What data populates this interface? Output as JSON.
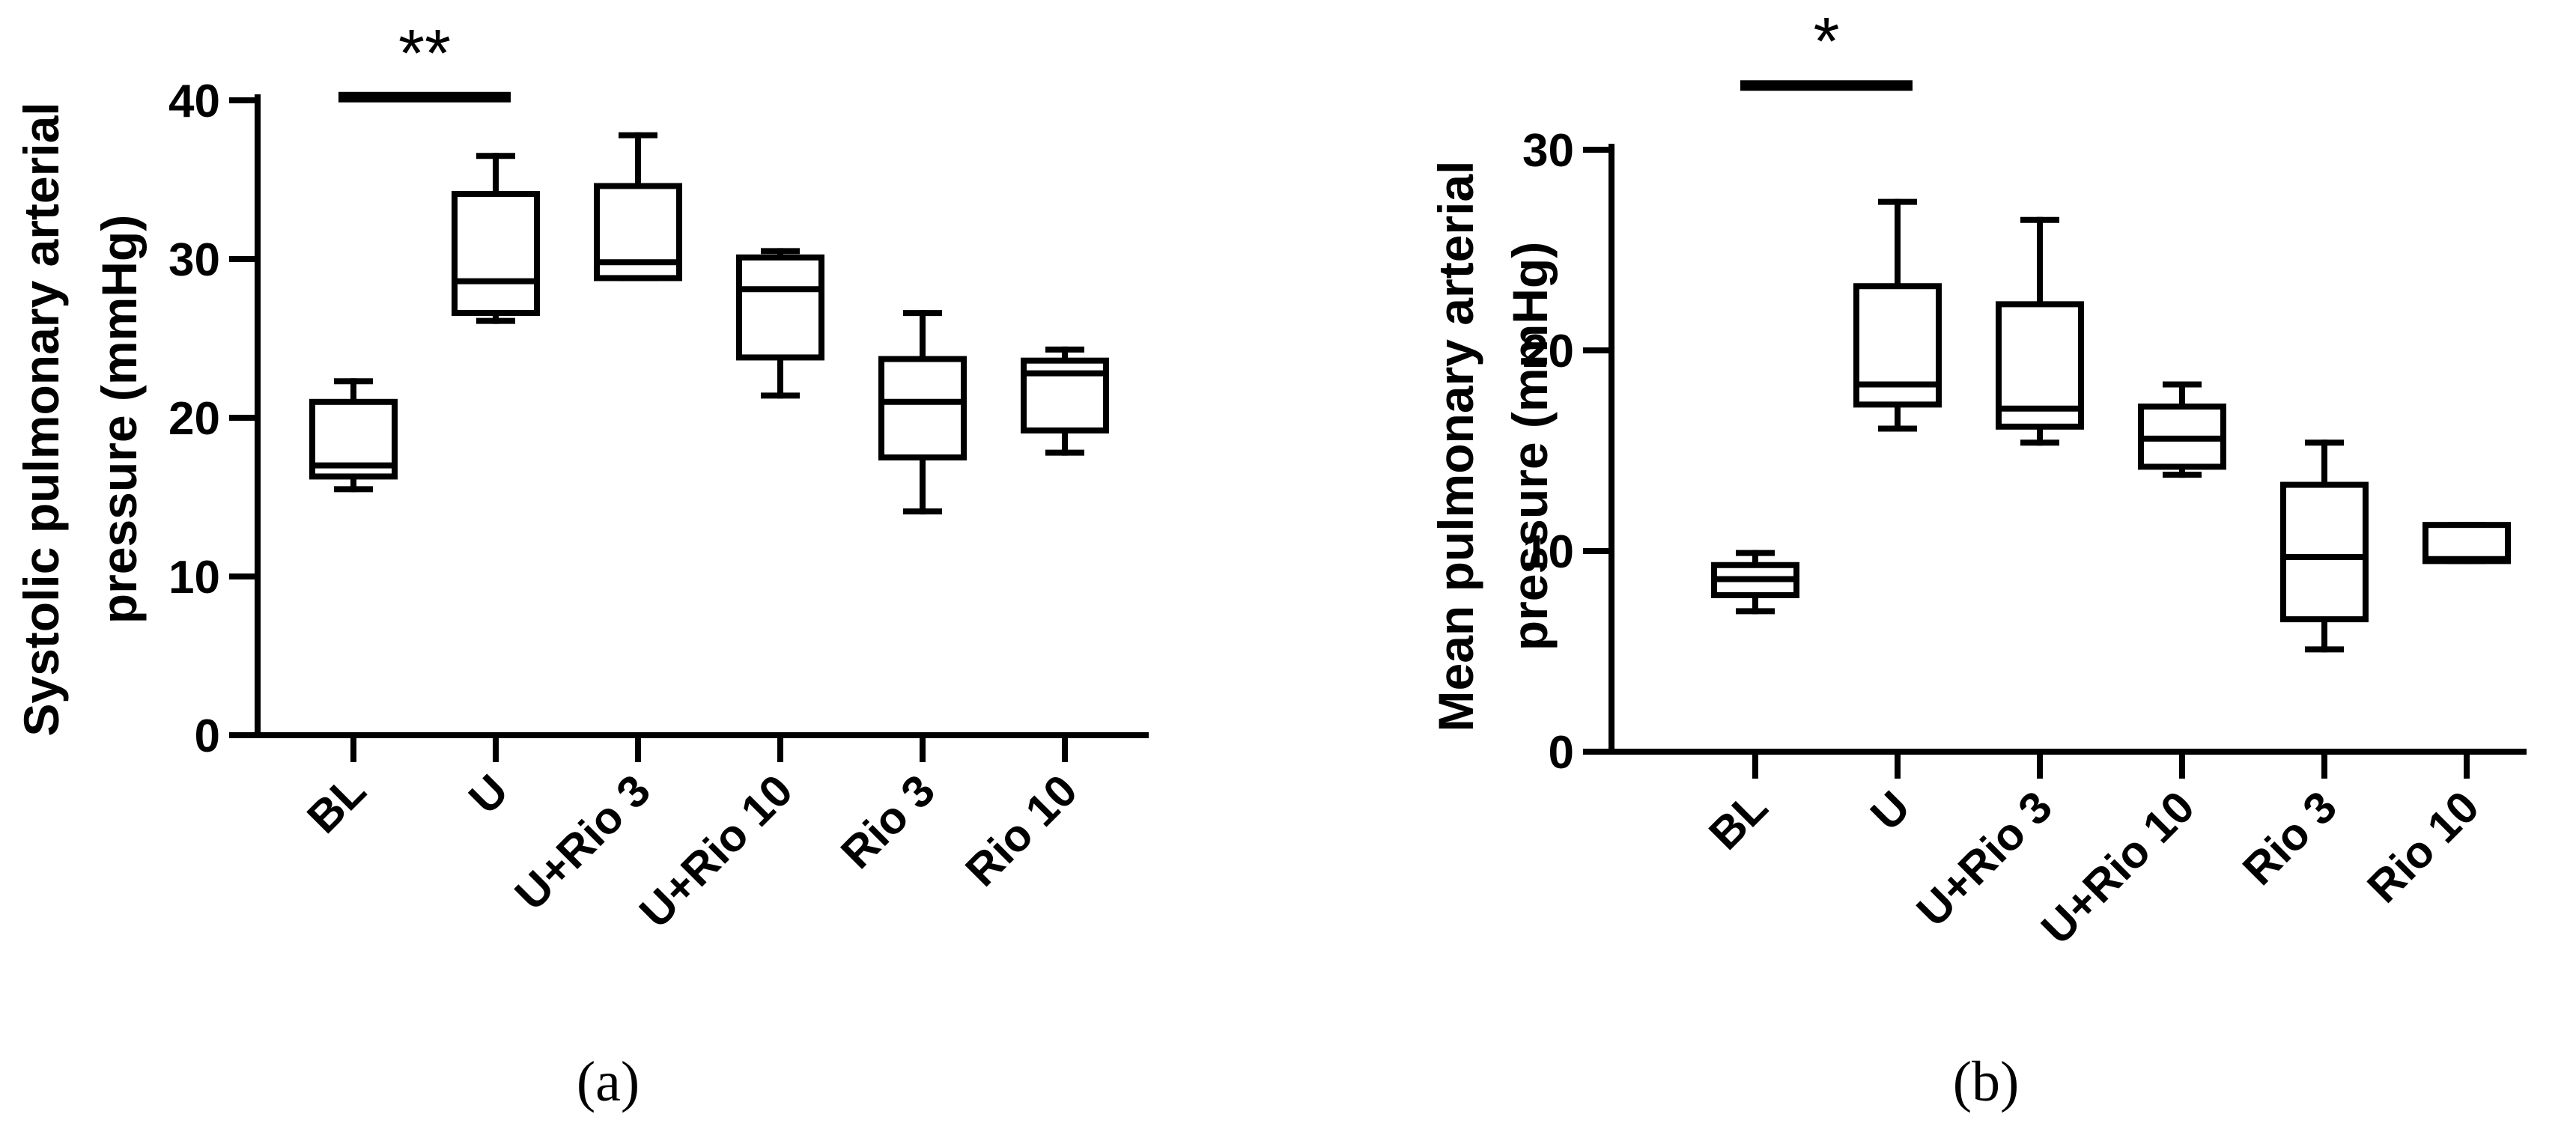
{
  "chart_data": [
    {
      "type": "box",
      "panel_label": "(a)",
      "ylabel_lines": [
        "Systolic pulmonary arterial",
        "pressure (mmHg)"
      ],
      "ylim": [
        0,
        40
      ],
      "yticks": [
        0,
        10,
        20,
        30,
        40
      ],
      "categories": [
        "BL",
        "U",
        "U+Rio 3",
        "U+Rio 10",
        "Rio 3",
        "Rio 10"
      ],
      "boxes": [
        {
          "min": 15.5,
          "q1": 16.3,
          "median": 17.0,
          "q3": 21.0,
          "max": 22.3
        },
        {
          "min": 26.1,
          "q1": 26.6,
          "median": 28.6,
          "q3": 34.1,
          "max": 36.5
        },
        {
          "min": 28.8,
          "q1": 28.8,
          "median": 29.8,
          "q3": 34.6,
          "max": 37.8
        },
        {
          "min": 21.4,
          "q1": 23.8,
          "median": 28.1,
          "q3": 30.1,
          "max": 30.5
        },
        {
          "min": 14.1,
          "q1": 17.5,
          "median": 21.0,
          "q3": 23.7,
          "max": 26.6
        },
        {
          "min": 17.8,
          "q1": 19.2,
          "median": 22.8,
          "q3": 23.6,
          "max": 24.3
        }
      ],
      "significance": {
        "label": "**",
        "from": 0,
        "to": 1,
        "y": 40.2
      }
    },
    {
      "type": "box",
      "panel_label": "(b)",
      "ylabel_lines": [
        "Mean pulmonary arterial",
        "pressure (mmHg)"
      ],
      "ylim": [
        0,
        30
      ],
      "yticks": [
        0,
        10,
        20,
        30
      ],
      "categories": [
        "BL",
        "U",
        "U+Rio 3",
        "U+Rio 10",
        "Rio 3",
        "Rio 10"
      ],
      "boxes": [
        {
          "min": 7.0,
          "q1": 7.8,
          "median": 8.6,
          "q3": 9.3,
          "max": 9.9
        },
        {
          "min": 16.1,
          "q1": 17.3,
          "median": 18.3,
          "q3": 23.2,
          "max": 27.4
        },
        {
          "min": 15.4,
          "q1": 16.2,
          "median": 17.1,
          "q3": 22.3,
          "max": 26.5
        },
        {
          "min": 13.8,
          "q1": 14.2,
          "median": 15.6,
          "q3": 17.2,
          "max": 18.3
        },
        {
          "min": 5.1,
          "q1": 6.6,
          "median": 9.7,
          "q3": 13.3,
          "max": 15.4
        },
        {
          "min": 9.5,
          "q1": 9.5,
          "median": 9.6,
          "q3": 11.3,
          "max": 11.3
        }
      ],
      "significance": {
        "label": "*",
        "from": 0,
        "to": 1,
        "y": 33.2
      }
    }
  ]
}
